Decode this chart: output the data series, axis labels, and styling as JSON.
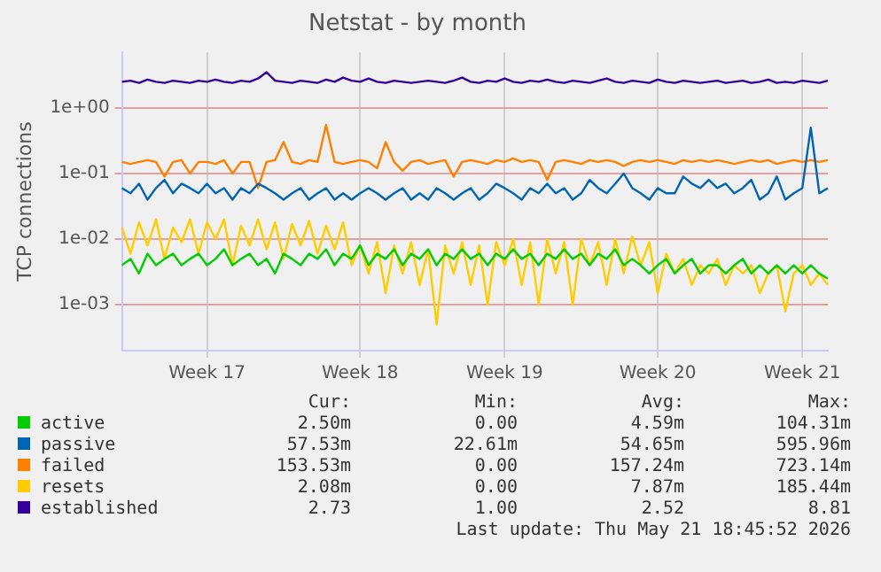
{
  "chart_data": {
    "type": "line",
    "title": "Netstat - by month",
    "ylabel": "TCP connections",
    "log": "y",
    "grid": true,
    "legend": "bottom",
    "marker": "none",
    "line_style": "solid",
    "ylim": [
      0.0002,
      7
    ],
    "yticks": [
      {
        "value": 0.001,
        "label": "1e-03"
      },
      {
        "value": 0.01,
        "label": "1e-02"
      },
      {
        "value": 0.1,
        "label": "1e-01"
      },
      {
        "value": 1,
        "label": "1e+00"
      }
    ],
    "categories": [
      null,
      null,
      null,
      null,
      null,
      null,
      null,
      null,
      null,
      null,
      "Week 17",
      null,
      null,
      null,
      null,
      null,
      null,
      null,
      null,
      null,
      null,
      null,
      null,
      null,
      null,
      null,
      null,
      null,
      "Week 18",
      null,
      null,
      null,
      null,
      null,
      null,
      null,
      null,
      null,
      null,
      null,
      null,
      null,
      null,
      null,
      null,
      "Week 19",
      null,
      null,
      null,
      null,
      null,
      null,
      null,
      null,
      null,
      null,
      null,
      null,
      null,
      null,
      null,
      null,
      null,
      "Week 20",
      null,
      null,
      null,
      null,
      null,
      null,
      null,
      null,
      null,
      null,
      null,
      null,
      null,
      null,
      null,
      null,
      "Week 21",
      null,
      null,
      null
    ],
    "series": [
      {
        "name": "active",
        "color": "#00cc00",
        "values": [
          0.004,
          0.005,
          0.003,
          0.006,
          0.004,
          0.005,
          0.006,
          0.004,
          0.005,
          0.006,
          0.004,
          0.005,
          0.007,
          0.004,
          0.005,
          0.006,
          0.004,
          0.005,
          0.003,
          0.006,
          0.005,
          0.004,
          0.006,
          0.005,
          0.007,
          0.004,
          0.006,
          0.005,
          0.008,
          0.004,
          0.006,
          0.005,
          0.007,
          0.004,
          0.006,
          0.005,
          0.007,
          0.004,
          0.006,
          0.005,
          0.007,
          0.005,
          0.006,
          0.004,
          0.006,
          0.005,
          0.007,
          0.005,
          0.006,
          0.004,
          0.006,
          0.005,
          0.007,
          0.005,
          0.006,
          0.004,
          0.006,
          0.005,
          0.007,
          0.004,
          0.005,
          0.004,
          0.003,
          0.004,
          0.005,
          0.003,
          0.004,
          0.005,
          0.003,
          0.004,
          0.004,
          0.003,
          0.004,
          0.005,
          0.003,
          0.004,
          0.003,
          0.004,
          0.003,
          0.004,
          0.003,
          0.004,
          0.003,
          0.0025
        ]
      },
      {
        "name": "passive",
        "color": "#0066b3",
        "values": [
          0.06,
          0.05,
          0.07,
          0.04,
          0.06,
          0.08,
          0.05,
          0.07,
          0.06,
          0.05,
          0.07,
          0.05,
          0.06,
          0.04,
          0.06,
          0.05,
          0.07,
          0.06,
          0.05,
          0.04,
          0.05,
          0.06,
          0.04,
          0.05,
          0.06,
          0.04,
          0.05,
          0.04,
          0.05,
          0.06,
          0.05,
          0.04,
          0.05,
          0.06,
          0.04,
          0.05,
          0.04,
          0.06,
          0.05,
          0.04,
          0.05,
          0.06,
          0.04,
          0.05,
          0.07,
          0.06,
          0.05,
          0.04,
          0.06,
          0.05,
          0.07,
          0.05,
          0.06,
          0.04,
          0.05,
          0.08,
          0.06,
          0.05,
          0.07,
          0.1,
          0.06,
          0.05,
          0.04,
          0.06,
          0.05,
          0.05,
          0.09,
          0.07,
          0.06,
          0.08,
          0.06,
          0.07,
          0.05,
          0.06,
          0.08,
          0.04,
          0.05,
          0.09,
          0.04,
          0.05,
          0.06,
          0.5,
          0.05,
          0.06
        ]
      },
      {
        "name": "failed",
        "color": "#ff8000",
        "values": [
          0.15,
          0.14,
          0.15,
          0.16,
          0.15,
          0.09,
          0.15,
          0.16,
          0.1,
          0.15,
          0.15,
          0.14,
          0.16,
          0.1,
          0.15,
          0.15,
          0.06,
          0.15,
          0.16,
          0.3,
          0.15,
          0.14,
          0.16,
          0.15,
          0.55,
          0.15,
          0.14,
          0.15,
          0.16,
          0.15,
          0.12,
          0.3,
          0.15,
          0.11,
          0.15,
          0.16,
          0.14,
          0.15,
          0.16,
          0.09,
          0.15,
          0.16,
          0.15,
          0.14,
          0.16,
          0.15,
          0.17,
          0.15,
          0.16,
          0.15,
          0.08,
          0.15,
          0.16,
          0.15,
          0.14,
          0.16,
          0.15,
          0.16,
          0.15,
          0.13,
          0.15,
          0.16,
          0.15,
          0.16,
          0.15,
          0.14,
          0.16,
          0.15,
          0.16,
          0.15,
          0.16,
          0.15,
          0.14,
          0.15,
          0.16,
          0.15,
          0.16,
          0.14,
          0.15,
          0.16,
          0.15,
          0.16,
          0.15,
          0.16
        ]
      },
      {
        "name": "resets",
        "color": "#ffcc00",
        "values": [
          0.015,
          0.006,
          0.018,
          0.008,
          0.02,
          0.005,
          0.015,
          0.009,
          0.02,
          0.006,
          0.018,
          0.01,
          0.02,
          0.004,
          0.016,
          0.008,
          0.02,
          0.007,
          0.018,
          0.005,
          0.017,
          0.008,
          0.019,
          0.006,
          0.016,
          0.007,
          0.018,
          0.004,
          0.008,
          0.003,
          0.009,
          0.0015,
          0.008,
          0.003,
          0.009,
          0.002,
          0.007,
          0.0005,
          0.008,
          0.003,
          0.009,
          0.002,
          0.008,
          0.001,
          0.009,
          0.004,
          0.01,
          0.002,
          0.009,
          0.001,
          0.01,
          0.003,
          0.009,
          0.001,
          0.01,
          0.004,
          0.009,
          0.002,
          0.01,
          0.003,
          0.011,
          0.004,
          0.009,
          0.0015,
          0.006,
          0.003,
          0.005,
          0.002,
          0.004,
          0.003,
          0.005,
          0.002,
          0.004,
          0.003,
          0.004,
          0.0015,
          0.003,
          0.004,
          0.0008,
          0.003,
          0.004,
          0.002,
          0.003,
          0.002
        ]
      },
      {
        "name": "established",
        "color": "#330099",
        "values": [
          2.5,
          2.6,
          2.4,
          2.7,
          2.5,
          2.4,
          2.6,
          2.5,
          2.4,
          2.6,
          2.5,
          2.7,
          2.5,
          2.4,
          2.6,
          2.5,
          2.8,
          3.5,
          2.6,
          2.5,
          2.4,
          2.6,
          2.5,
          2.4,
          2.7,
          2.5,
          2.9,
          2.6,
          2.5,
          2.8,
          2.5,
          2.4,
          2.6,
          2.5,
          2.4,
          2.5,
          2.6,
          2.5,
          2.4,
          2.6,
          2.9,
          2.5,
          2.4,
          2.6,
          2.5,
          2.8,
          2.5,
          2.4,
          2.6,
          2.5,
          2.7,
          2.5,
          2.4,
          2.6,
          2.5,
          2.4,
          2.6,
          2.8,
          2.5,
          2.4,
          2.6,
          2.5,
          2.4,
          2.7,
          2.5,
          2.4,
          2.6,
          2.5,
          2.4,
          2.5,
          2.6,
          2.4,
          2.5,
          2.6,
          2.4,
          2.5,
          2.7,
          2.4,
          2.5,
          2.4,
          2.6,
          2.5,
          2.4,
          2.6
        ]
      }
    ],
    "annotations": [
      "Cur:",
      "Min:",
      "Avg:",
      "Max:",
      "2.50m",
      "0.00",
      "4.59m",
      "104.31m",
      "57.53m",
      "22.61m",
      "54.65m",
      "595.96m",
      "153.53m",
      "0.00",
      "157.24m",
      "723.14m",
      "2.08m",
      "0.00",
      "7.87m",
      "185.44m",
      "2.73",
      "1.00",
      "2.52",
      "8.81",
      "Last update: Thu May 21 18:45:52 2026"
    ]
  }
}
